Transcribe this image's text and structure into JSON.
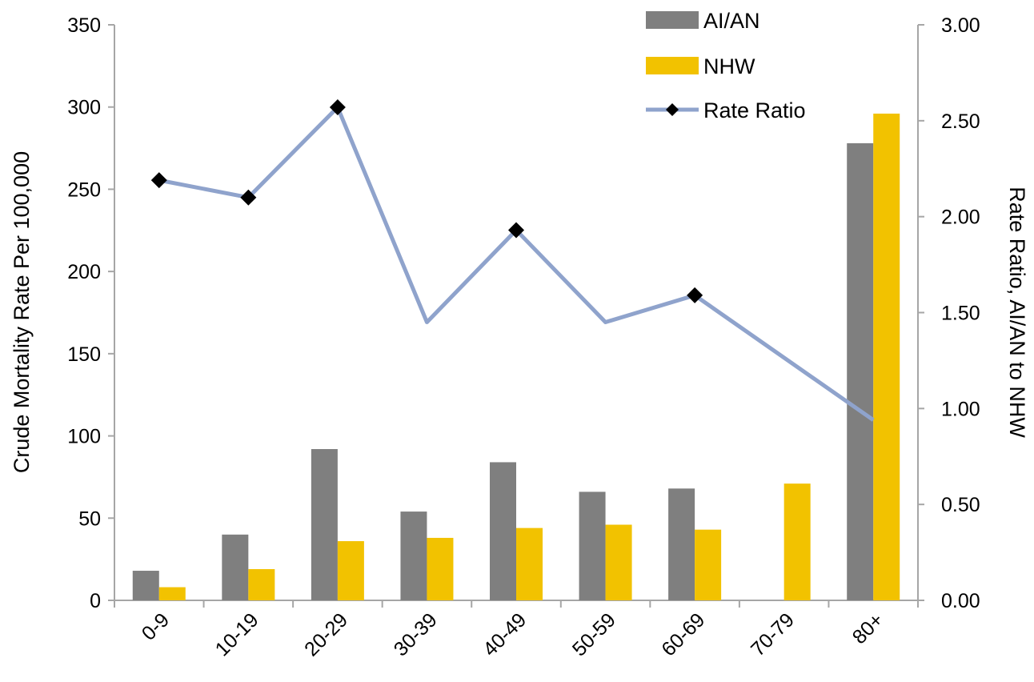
{
  "chart_data": {
    "type": "bar",
    "categories": [
      "0-9",
      "10-19",
      "20-29",
      "30-39",
      "40-49",
      "50-59",
      "60-69",
      "70-79",
      "80+"
    ],
    "series": [
      {
        "name": "AI/AN",
        "type": "bar",
        "axis": "left",
        "color": "#7f7f7f",
        "values": [
          18,
          40,
          92,
          54,
          84,
          66,
          68,
          null,
          278
        ]
      },
      {
        "name": "NHW",
        "type": "bar",
        "axis": "left",
        "color": "#f2c200",
        "values": [
          8,
          19,
          36,
          38,
          44,
          46,
          43,
          71,
          296
        ]
      },
      {
        "name": "Rate Ratio",
        "type": "line",
        "axis": "right",
        "color": "#8fa3cc",
        "marker_color": "#000000",
        "values": [
          2.19,
          2.1,
          2.57,
          1.45,
          1.93,
          1.45,
          1.59,
          null,
          0.94
        ],
        "markers": [
          true,
          true,
          true,
          false,
          true,
          false,
          true,
          false,
          false
        ]
      }
    ],
    "ylabel": "Crude Mortality Rate Per 100,000",
    "y2label": "Rate Ratio, AI/AN to NHW",
    "ylim": [
      0,
      350
    ],
    "y2lim": [
      0,
      3
    ],
    "yticks": [
      "0",
      "50",
      "100",
      "150",
      "200",
      "250",
      "300",
      "350"
    ],
    "y2ticks": [
      "0.00",
      "0.50",
      "1.00",
      "1.50",
      "2.00",
      "2.50",
      "3.00"
    ],
    "legend_position": "top-right",
    "grid": false
  }
}
